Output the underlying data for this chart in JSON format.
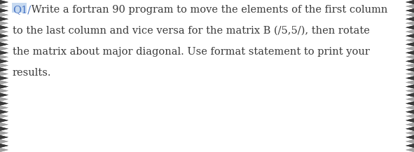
{
  "background_color": "#ffffff",
  "text_color": "#3a3a3a",
  "q_label": "Q1/",
  "q_label_color": "#4472c4",
  "q_label_highlight": "#c6d9f0",
  "line1": " Write a fortran 90 program to move the elements of the first column",
  "line2": "to the last column and vice versa for the matrix B (/5,5/), then rotate",
  "line3": "the matrix about major diagonal. Use format statement to print your",
  "line4": "results.",
  "font_size": 10.5,
  "border_pattern_color": "#3a3a3a",
  "border_pattern_light": "#a0a0a0",
  "fig_width": 5.91,
  "fig_height": 2.17,
  "dpi": 100
}
